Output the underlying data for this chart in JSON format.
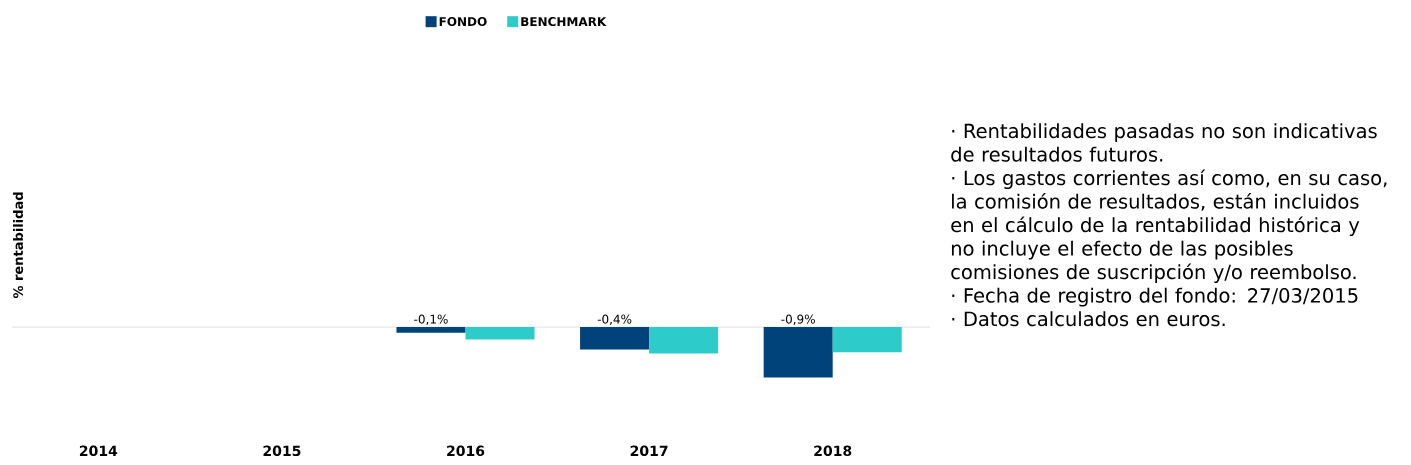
{
  "chart_data": {
    "type": "bar",
    "ylabel": "% rentabilidad",
    "categories": [
      "2014",
      "2015",
      "2016",
      "2017",
      "2018"
    ],
    "series": [
      {
        "name": "FONDO",
        "color": "#00427a",
        "values": [
          null,
          null,
          -0.1,
          -0.4,
          -0.9
        ],
        "value_labels": [
          null,
          null,
          "-0,1%",
          "-0,4%",
          "-0,9%"
        ]
      },
      {
        "name": "BENCHMARK",
        "color": "#2ecbcb",
        "values": [
          null,
          null,
          -0.22,
          -0.47,
          -0.45
        ]
      }
    ],
    "tick_labels": "x",
    "legend": "top",
    "grid": false,
    "annotations": [
      "· Rentabilidades pasadas no son indicativas de resultados futuros.",
      "· Los gastos corrientes así como, en su caso, la comisión de resultados, están incluidos en el cálculo de la rentabilidad histórica y no incluye el efecto de las posibles comisiones de suscripción y/o reembolso.",
      "· Fecha de registro del fondo: 27/03/2015",
      "· Datos calculados en euros."
    ]
  }
}
